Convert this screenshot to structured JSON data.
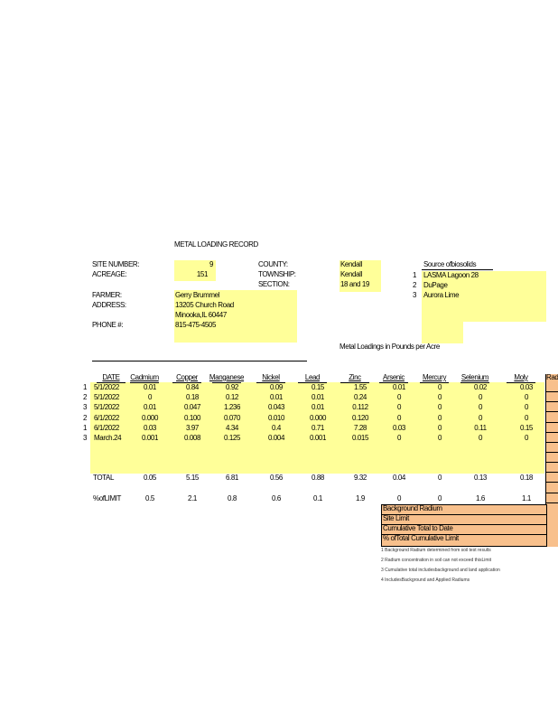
{
  "title": "METAL    LOADING    RECORD",
  "site": {
    "site_number_label": "SITE    NUMBER:",
    "site_number": "9",
    "acreage_label": "ACREAGE:",
    "acreage": "151",
    "county_label": "COUNTY:",
    "county": "Kendall",
    "township_label": "TOWNSHIP:",
    "township": "Kendall",
    "section_label": "SECTION:",
    "section": "18   and   19",
    "farmer_label": "FARMER:",
    "farmer": "Gerry    Brummel",
    "address_label": "ADDRESS:",
    "address1": "13205     Church     Road",
    "address2": "Minooka,IL        60447",
    "phone_label": "PHONE     #:",
    "phone": "815-475-4505"
  },
  "sources": {
    "header": "Source      ofbiosolids",
    "items": [
      {
        "num": "1",
        "name": "LASMA      Lagoon       28"
      },
      {
        "num": "2",
        "name": "DuPage"
      },
      {
        "num": "3",
        "name": "Aurora      Lime"
      }
    ]
  },
  "units_note": "Metal     Loadings       in   Pounds     per    Acre",
  "table": {
    "columns": [
      "DATE",
      "Cadmium",
      "Copper",
      "Manganese",
      "Nickel",
      "Lead",
      "Zinc",
      "Arsenic",
      "Mercury",
      "Selenium",
      "Moly",
      "Rad"
    ],
    "rows": [
      {
        "src": "1",
        "date": "5/1/2022",
        "v": [
          "0.01",
          "0.84",
          "0.92",
          "0.09",
          "0.15",
          "1.55",
          "0.01",
          "0",
          "0.02",
          "0.03"
        ]
      },
      {
        "src": "2",
        "date": "5/1/2022",
        "v": [
          "0",
          "0.18",
          "0.12",
          "0.01",
          "0.01",
          "0.24",
          "0",
          "0",
          "0",
          "0"
        ]
      },
      {
        "src": "3",
        "date": "5/1/2022",
        "v": [
          "0.01",
          "0.047",
          "1.236",
          "0.043",
          "0.01",
          "0.112",
          "0",
          "0",
          "0",
          "0"
        ]
      },
      {
        "src": "2",
        "date": "6/1/2022",
        "v": [
          "0.000",
          "0.100",
          "0.070",
          "0.010",
          "0.000",
          "0.120",
          "0",
          "0",
          "0",
          "0"
        ]
      },
      {
        "src": "1",
        "date": "6/1/2022",
        "v": [
          "0.03",
          "3.97",
          "4.34",
          "0.4",
          "0.71",
          "7.28",
          "0.03",
          "0",
          "0.11",
          "0.15"
        ]
      },
      {
        "src": "3",
        "date": "March.24",
        "v": [
          "0.001",
          "0.008",
          "0.125",
          "0.004",
          "0.001",
          "0.015",
          "0",
          "0",
          "0",
          "0"
        ]
      }
    ],
    "total_label": "TOTAL",
    "totals": [
      "0.05",
      "5.15",
      "6.81",
      "0.56",
      "0.88",
      "9.32",
      "0.04",
      "0",
      "0.13",
      "0.18"
    ],
    "limit_label": "%ofLIMIT",
    "limits": [
      "0.5",
      "2.1",
      "0.8",
      "0.6",
      "0.1",
      "1.9",
      "0",
      "0",
      "1.6",
      "1.1"
    ]
  },
  "radium": {
    "rows": [
      "Background        Radium",
      "Site    Limit",
      "Cumulative         Total     to    Date",
      "%    ofTotal      Cumulative          Limit"
    ],
    "notes": [
      "1  Background              Radium           determined                 from       soil      test      results",
      "2  Radium          concentration                    in    soil     can     not     exceed       thisLimit",
      "3  Cumulative                total     includesbackground                           and       land      application",
      "4  IncludesBackground                              and      Applied          Radiums"
    ]
  },
  "colors": {
    "yellow": "#ffff99",
    "orange": "#f8c08c"
  }
}
